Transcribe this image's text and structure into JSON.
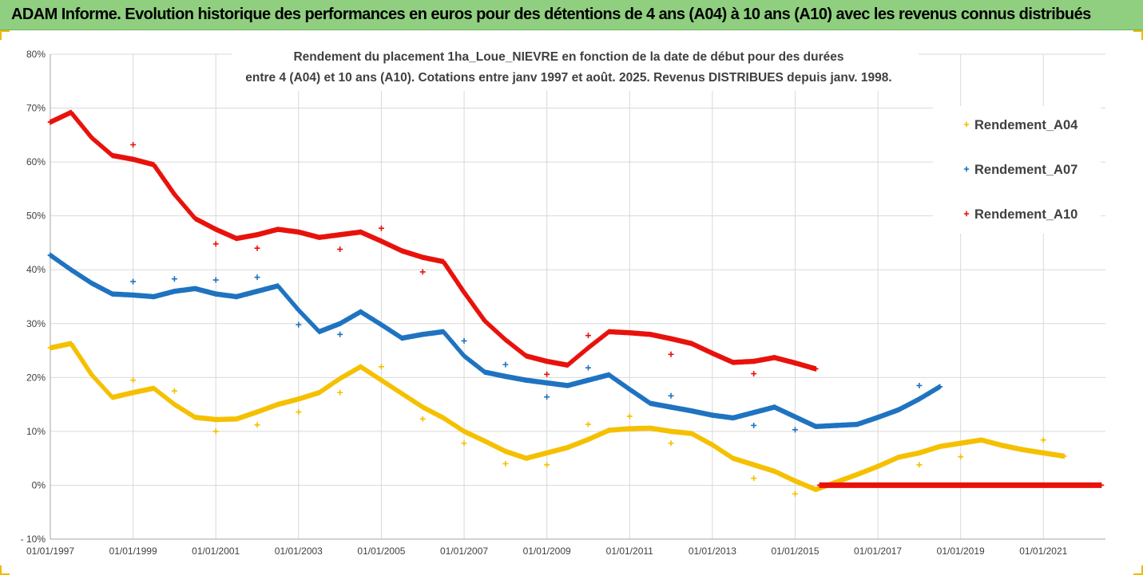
{
  "header": {
    "title": "ADAM Informe. Evolution historique des performances en euros pour des détentions de 4 ans (A04) à 10 ans (A10) avec les revenus connus distribués"
  },
  "chart_data": {
    "type": "scatter",
    "title_line1": "Rendement du placement 1ha_Loue_NIEVRE en fonction de la date de début pour des durées",
    "title_line2": "entre 4 (A04) et 10 ans (A10). Cotations entre janv 1997 et août. 2025. Revenus DISTRIBUES depuis janv. 1998.",
    "xlim": [
      1997.0,
      2022.5
    ],
    "ylim": [
      -10,
      80
    ],
    "y_ticks": [
      -10,
      0,
      10,
      20,
      30,
      40,
      50,
      60,
      70,
      80
    ],
    "y_tick_labels": [
      "- 10%",
      "0%",
      "10%",
      "20%",
      "30%",
      "40%",
      "50%",
      "60%",
      "70%",
      "80%"
    ],
    "x_ticks": [
      1997,
      1999,
      2001,
      2003,
      2005,
      2007,
      2009,
      2011,
      2013,
      2015,
      2017,
      2019,
      2021
    ],
    "x_tick_labels": [
      "01/01/1997",
      "01/01/1999",
      "01/01/2001",
      "01/01/2003",
      "01/01/2005",
      "01/01/2007",
      "01/01/2009",
      "01/01/2011",
      "01/01/2013",
      "01/01/2015",
      "01/01/2017",
      "01/01/2019",
      "01/01/2021"
    ],
    "grid": true,
    "legend_position": "top-right",
    "series": [
      {
        "name": "Rendement_A04",
        "color": "#f5c000",
        "points": [
          [
            1997.0,
            25.5
          ],
          [
            1997.5,
            26.3
          ],
          [
            1998.0,
            20.5
          ],
          [
            1998.5,
            16.3
          ],
          [
            1999.0,
            17.2
          ],
          [
            1999.5,
            18.0
          ],
          [
            2000.0,
            15.0
          ],
          [
            2000.5,
            12.6
          ],
          [
            2001.0,
            12.2
          ],
          [
            2001.5,
            12.3
          ],
          [
            2002.0,
            13.6
          ],
          [
            2002.5,
            15.0
          ],
          [
            2003.0,
            16.0
          ],
          [
            2003.5,
            17.2
          ],
          [
            2004.0,
            19.8
          ],
          [
            2004.5,
            22.0
          ],
          [
            2005.0,
            19.5
          ],
          [
            2005.5,
            17.0
          ],
          [
            2006.0,
            14.5
          ],
          [
            2006.5,
            12.5
          ],
          [
            2007.0,
            10.0
          ],
          [
            2007.5,
            8.2
          ],
          [
            2008.0,
            6.3
          ],
          [
            2008.5,
            5.0
          ],
          [
            2009.0,
            6.0
          ],
          [
            2009.5,
            7.0
          ],
          [
            2010.0,
            8.5
          ],
          [
            2010.5,
            10.2
          ],
          [
            2011.0,
            10.5
          ],
          [
            2011.5,
            10.6
          ],
          [
            2012.0,
            10.0
          ],
          [
            2012.5,
            9.6
          ],
          [
            2013.0,
            7.5
          ],
          [
            2013.5,
            5.0
          ],
          [
            2014.0,
            3.8
          ],
          [
            2014.5,
            2.6
          ],
          [
            2015.0,
            0.8
          ],
          [
            2015.5,
            -0.8
          ],
          [
            2016.0,
            0.6
          ],
          [
            2016.5,
            2.0
          ],
          [
            2017.0,
            3.5
          ],
          [
            2017.5,
            5.2
          ],
          [
            2018.0,
            6.0
          ],
          [
            2018.5,
            7.2
          ],
          [
            2019.0,
            7.8
          ],
          [
            2019.5,
            8.4
          ],
          [
            2020.0,
            7.4
          ],
          [
            2020.5,
            6.6
          ],
          [
            2021.0,
            6.0
          ],
          [
            2021.5,
            5.4
          ]
        ],
        "outliers": [
          [
            1999.0,
            19.5
          ],
          [
            2000.0,
            17.5
          ],
          [
            2001.0,
            10.0
          ],
          [
            2002.0,
            11.2
          ],
          [
            2003.0,
            13.6
          ],
          [
            2004.0,
            17.2
          ],
          [
            2005.0,
            22.0
          ],
          [
            2006.0,
            12.3
          ],
          [
            2007.0,
            7.8
          ],
          [
            2008.0,
            4.0
          ],
          [
            2009.0,
            3.8
          ],
          [
            2010.0,
            11.3
          ],
          [
            2011.0,
            12.8
          ],
          [
            2012.0,
            7.8
          ],
          [
            2014.0,
            1.3
          ],
          [
            2015.0,
            -1.6
          ],
          [
            2018.0,
            3.8
          ],
          [
            2019.0,
            5.3
          ],
          [
            2021.0,
            8.4
          ]
        ]
      },
      {
        "name": "Rendement_A07",
        "color": "#1f73c0",
        "points": [
          [
            1997.0,
            42.7
          ],
          [
            1997.5,
            40.0
          ],
          [
            1998.0,
            37.5
          ],
          [
            1998.5,
            35.5
          ],
          [
            1999.0,
            35.3
          ],
          [
            1999.5,
            35.0
          ],
          [
            2000.0,
            36.0
          ],
          [
            2000.5,
            36.5
          ],
          [
            2001.0,
            35.5
          ],
          [
            2001.5,
            35.0
          ],
          [
            2002.0,
            36.0
          ],
          [
            2002.5,
            37.0
          ],
          [
            2003.0,
            32.5
          ],
          [
            2003.5,
            28.5
          ],
          [
            2004.0,
            30.0
          ],
          [
            2004.5,
            32.2
          ],
          [
            2005.0,
            29.8
          ],
          [
            2005.5,
            27.3
          ],
          [
            2006.0,
            28.0
          ],
          [
            2006.5,
            28.5
          ],
          [
            2007.0,
            24.0
          ],
          [
            2007.5,
            21.0
          ],
          [
            2008.0,
            20.2
          ],
          [
            2008.5,
            19.5
          ],
          [
            2009.0,
            19.0
          ],
          [
            2009.5,
            18.5
          ],
          [
            2010.0,
            19.5
          ],
          [
            2010.5,
            20.5
          ],
          [
            2011.0,
            17.8
          ],
          [
            2011.5,
            15.2
          ],
          [
            2012.0,
            14.5
          ],
          [
            2012.5,
            13.8
          ],
          [
            2013.0,
            13.0
          ],
          [
            2013.5,
            12.5
          ],
          [
            2014.0,
            13.5
          ],
          [
            2014.5,
            14.5
          ],
          [
            2015.0,
            12.7
          ],
          [
            2015.5,
            10.9
          ],
          [
            2016.0,
            11.1
          ],
          [
            2016.5,
            11.3
          ],
          [
            2017.0,
            12.6
          ],
          [
            2017.5,
            14.0
          ],
          [
            2018.0,
            16.0
          ],
          [
            2018.5,
            18.3
          ]
        ],
        "outliers": [
          [
            1999.0,
            37.8
          ],
          [
            2000.0,
            38.3
          ],
          [
            2001.0,
            38.1
          ],
          [
            2002.0,
            38.6
          ],
          [
            2003.0,
            29.8
          ],
          [
            2004.0,
            28.0
          ],
          [
            2007.0,
            26.8
          ],
          [
            2008.0,
            22.4
          ],
          [
            2009.0,
            16.4
          ],
          [
            2010.0,
            21.8
          ],
          [
            2012.0,
            16.6
          ],
          [
            2014.0,
            11.1
          ],
          [
            2015.0,
            10.3
          ],
          [
            2018.0,
            18.5
          ]
        ]
      },
      {
        "name": "Rendement_A10",
        "color": "#e8120c",
        "points": [
          [
            1997.0,
            67.4
          ],
          [
            1997.5,
            69.2
          ],
          [
            1998.0,
            64.5
          ],
          [
            1998.5,
            61.2
          ],
          [
            1999.0,
            60.5
          ],
          [
            1999.5,
            59.5
          ],
          [
            2000.0,
            54.0
          ],
          [
            2000.5,
            49.5
          ],
          [
            2001.0,
            47.5
          ],
          [
            2001.5,
            45.8
          ],
          [
            2002.0,
            46.5
          ],
          [
            2002.5,
            47.5
          ],
          [
            2003.0,
            47.0
          ],
          [
            2003.5,
            46.0
          ],
          [
            2004.0,
            46.5
          ],
          [
            2004.5,
            47.0
          ],
          [
            2005.0,
            45.3
          ],
          [
            2005.5,
            43.5
          ],
          [
            2006.0,
            42.3
          ],
          [
            2006.5,
            41.5
          ],
          [
            2007.0,
            35.8
          ],
          [
            2007.5,
            30.5
          ],
          [
            2008.0,
            27.0
          ],
          [
            2008.5,
            24.0
          ],
          [
            2009.0,
            23.0
          ],
          [
            2009.5,
            22.3
          ],
          [
            2010.0,
            25.5
          ],
          [
            2010.5,
            28.5
          ],
          [
            2011.0,
            28.3
          ],
          [
            2011.5,
            28.0
          ],
          [
            2012.0,
            27.2
          ],
          [
            2012.5,
            26.3
          ],
          [
            2013.0,
            24.5
          ],
          [
            2013.5,
            22.8
          ],
          [
            2014.0,
            23.0
          ],
          [
            2014.5,
            23.7
          ],
          [
            2015.0,
            22.7
          ],
          [
            2015.5,
            21.6
          ]
        ],
        "outliers": [
          [
            1999.0,
            63.2
          ],
          [
            2001.0,
            44.8
          ],
          [
            2002.0,
            44.0
          ],
          [
            2004.0,
            43.8
          ],
          [
            2005.0,
            47.7
          ],
          [
            2006.0,
            39.6
          ],
          [
            2009.0,
            20.6
          ],
          [
            2010.0,
            27.8
          ],
          [
            2012.0,
            24.3
          ],
          [
            2014.0,
            20.7
          ]
        ],
        "zero_segment": [
          2015.6,
          2022.4
        ]
      }
    ]
  }
}
